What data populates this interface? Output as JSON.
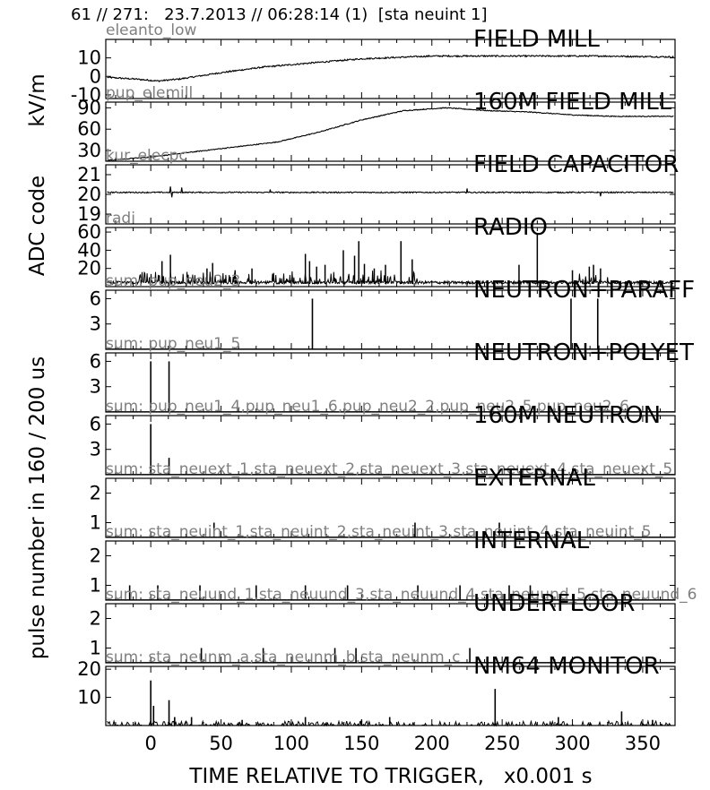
{
  "header": "61 // 271:   23.7.2013 // 06:28:14 (1)  [sta neuint 1]",
  "chart_data": {
    "type": "line",
    "xlabel": "TIME RELATIVE TO TRIGGER,   x0.001 s",
    "xlim": [
      -32,
      373
    ],
    "xticks": [
      0,
      50,
      100,
      150,
      200,
      250,
      300,
      350
    ],
    "group_ylabels": [
      {
        "text": "kV/m",
        "panels": [
          0,
          1
        ]
      },
      {
        "text": "ADC code",
        "panels": [
          2,
          3
        ]
      },
      {
        "text": "pulse number in 160 / 200 us",
        "panels": [
          4,
          10
        ]
      }
    ],
    "panels": [
      {
        "title": "FIELD MILL",
        "sublabel": "eleanto_low",
        "kind": "smooth",
        "ylim": [
          -12,
          20
        ],
        "yticks": [
          -10,
          0,
          10
        ],
        "yticklabels": [
          "-10",
          "0",
          "10"
        ],
        "profile": [
          [
            -32,
            -0.5
          ],
          [
            -10,
            -1.5
          ],
          [
            5,
            -2.5
          ],
          [
            20,
            -1.5
          ],
          [
            50,
            2
          ],
          [
            80,
            5
          ],
          [
            110,
            7
          ],
          [
            150,
            9.5
          ],
          [
            200,
            11
          ],
          [
            260,
            11
          ],
          [
            320,
            11
          ],
          [
            373,
            10.5
          ]
        ],
        "noise": 0.4
      },
      {
        "title": "160M FIELD MILL",
        "sublabel": "pup_elemill",
        "kind": "smooth",
        "ylim": [
          15,
          98
        ],
        "yticks": [
          30,
          60,
          90
        ],
        "yticklabels": [
          "30",
          "60",
          "90"
        ],
        "profile": [
          [
            -32,
            16
          ],
          [
            0,
            21
          ],
          [
            30,
            28
          ],
          [
            60,
            35
          ],
          [
            90,
            42
          ],
          [
            120,
            56
          ],
          [
            150,
            73
          ],
          [
            180,
            86
          ],
          [
            210,
            90
          ],
          [
            240,
            86
          ],
          [
            270,
            84
          ],
          [
            300,
            80
          ],
          [
            330,
            78
          ],
          [
            373,
            78
          ]
        ],
        "noise": 0.6
      },
      {
        "title": "FIELD CAPACITOR",
        "sublabel": "kur_elecpc",
        "kind": "smooth",
        "ylim": [
          18.5,
          21.5
        ],
        "yticks": [
          19,
          20,
          21
        ],
        "yticklabels": [
          "19",
          "20",
          "21"
        ],
        "profile": [
          [
            -32,
            20.1
          ],
          [
            373,
            20.1
          ]
        ],
        "noise": 0.03,
        "spikes": [
          [
            14,
            20.4
          ],
          [
            22,
            20.35
          ],
          [
            15,
            19.85
          ],
          [
            225,
            20.3
          ],
          [
            320,
            19.9
          ],
          [
            85,
            20.25
          ]
        ]
      },
      {
        "title": "RADIO",
        "sublabel": "radi",
        "kind": "noise",
        "ylim": [
          0,
          65
        ],
        "yticks": [
          20,
          40,
          60
        ],
        "yticklabels": [
          "20",
          "40",
          "60"
        ],
        "spikes": [
          [
            8,
            28
          ],
          [
            14,
            35
          ],
          [
            40,
            20
          ],
          [
            44,
            26
          ],
          [
            60,
            18
          ],
          [
            72,
            20
          ],
          [
            110,
            36
          ],
          [
            113,
            28
          ],
          [
            118,
            22
          ],
          [
            124,
            24
          ],
          [
            137,
            40
          ],
          [
            145,
            34
          ],
          [
            148,
            50
          ],
          [
            152,
            25
          ],
          [
            159,
            20
          ],
          [
            167,
            24
          ],
          [
            178,
            50
          ],
          [
            186,
            30
          ],
          [
            262,
            24
          ],
          [
            275,
            58
          ],
          [
            300,
            18
          ],
          [
            312,
            22
          ],
          [
            315,
            24
          ],
          [
            320,
            20
          ]
        ]
      },
      {
        "title": "NEUTRON+PARAFF",
        "sublabel": "sum: pup_neu2_3",
        "kind": "pulses",
        "ylim": [
          0,
          7
        ],
        "yticks": [
          3,
          6
        ],
        "yticklabels": [
          "3",
          "6"
        ],
        "spikes": [
          [
            115,
            6
          ],
          [
            299,
            6
          ],
          [
            318,
            6
          ]
        ]
      },
      {
        "title": "NEUTRON+POLYET",
        "sublabel": "sum: pup_neu1_5",
        "kind": "pulses",
        "ylim": [
          0,
          7
        ],
        "yticks": [
          3,
          6
        ],
        "yticklabels": [
          "3",
          "6"
        ],
        "spikes": [
          [
            0,
            6
          ],
          [
            13,
            6
          ]
        ]
      },
      {
        "title": "160M NEUTRON",
        "sublabel": "sum: pup_neu1_4,pup_neu1_6,pup_neu2_2,pup_neu2_5,pup_neu2_6",
        "kind": "pulses",
        "ylim": [
          0,
          7
        ],
        "yticks": [
          3,
          6
        ],
        "yticklabels": [
          "3",
          "6"
        ],
        "spikes": [
          [
            0,
            6
          ],
          [
            13,
            2
          ]
        ]
      },
      {
        "title": "EXTERNAL",
        "sublabel": "sum: sta_neuext_1,sta_neuext_2,sta_neuext_3,sta_neuext_4,sta_neuext_5",
        "kind": "pulses",
        "ylim": [
          0.5,
          2.5
        ],
        "yticks": [
          1,
          2
        ],
        "yticklabels": [
          "1",
          "2"
        ],
        "spikes": [
          [
            45,
            1
          ],
          [
            188,
            1
          ],
          [
            248,
            1
          ]
        ]
      },
      {
        "title": "INTERNAL",
        "sublabel": "sum: sta_neuint_1,sta_neuint_2,sta_neuint_3,sta_neuint_4,sta_neuint_5",
        "kind": "pulses",
        "ylim": [
          0.5,
          2.5
        ],
        "yticks": [
          1,
          2
        ],
        "yticklabels": [
          "1",
          "2"
        ],
        "spikes": [
          [
            -15,
            1
          ],
          [
            5,
            1
          ],
          [
            35,
            1
          ],
          [
            75,
            1
          ],
          [
            110,
            1
          ],
          [
            140,
            1
          ],
          [
            190,
            1
          ],
          [
            220,
            1
          ],
          [
            255,
            1
          ],
          [
            270,
            1
          ]
        ]
      },
      {
        "title": "UNDERFLOOR",
        "sublabel": "sum: sta_neuund_1,sta_neuund_3,sta_neuund_4,sta_neuund_5,sta_neuund_6",
        "kind": "pulses",
        "ylim": [
          0.5,
          2.5
        ],
        "yticks": [
          1,
          2
        ],
        "yticklabels": [
          "1",
          "2"
        ],
        "spikes": [
          [
            36,
            1
          ],
          [
            80,
            1
          ],
          [
            131,
            1
          ],
          [
            146,
            1
          ],
          [
            227,
            1
          ]
        ]
      },
      {
        "title": "NM64 MONITOR",
        "sublabel": "sum: sta_neunm_a,sta_neunm_b,sta_neunm_c",
        "kind": "counts",
        "ylim": [
          0,
          21
        ],
        "yticks": [
          10,
          20
        ],
        "yticklabels": [
          "10",
          "20"
        ],
        "spikes": [
          [
            0,
            16
          ],
          [
            2,
            7
          ],
          [
            13,
            9
          ],
          [
            17,
            3
          ],
          [
            29,
            3
          ],
          [
            65,
            2
          ],
          [
            110,
            3
          ],
          [
            150,
            2
          ],
          [
            170,
            3
          ],
          [
            245,
            13
          ],
          [
            290,
            3
          ],
          [
            335,
            5
          ],
          [
            357,
            2
          ]
        ]
      }
    ]
  }
}
